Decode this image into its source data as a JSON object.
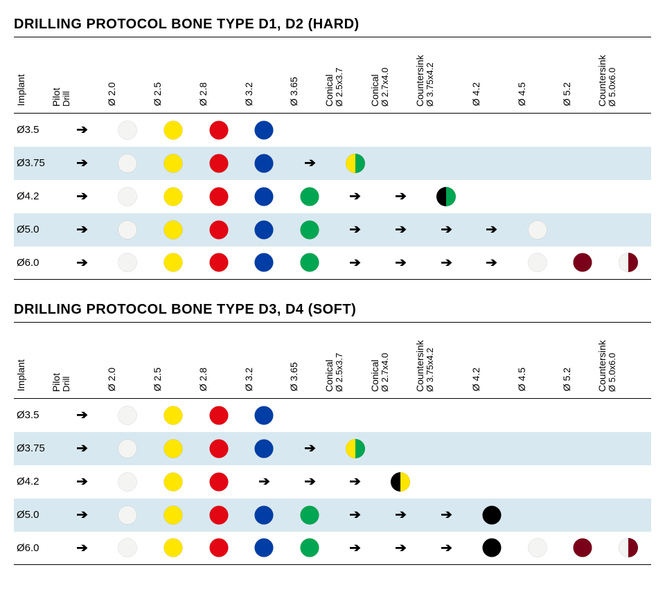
{
  "dot_radius": 14,
  "colors": {
    "white": "#f4f4f2",
    "yellow": "#ffe600",
    "red": "#e30613",
    "blue": "#003da5",
    "green": "#00a651",
    "black": "#000000",
    "darkred": "#7a0019"
  },
  "arrow_glyph": "➔",
  "columns": [
    {
      "key": "implant",
      "label": "Implant"
    },
    {
      "key": "pilot",
      "label": "Pilot",
      "sub": "Drill"
    },
    {
      "key": "d20",
      "label": "Ø 2.0"
    },
    {
      "key": "d25",
      "label": "Ø 2.5"
    },
    {
      "key": "d28",
      "label": "Ø 2.8"
    },
    {
      "key": "d32",
      "label": "Ø 3.2"
    },
    {
      "key": "d365",
      "label": "Ø 3.65"
    },
    {
      "key": "con25",
      "label": "Conical",
      "sub": "Ø 2.5x3.7"
    },
    {
      "key": "con27",
      "label": "Conical",
      "sub": "Ø 2.7x4.0"
    },
    {
      "key": "cs375",
      "label": "Countersink",
      "sub": "Ø 3.75x4.2"
    },
    {
      "key": "d42",
      "label": "Ø 4.2"
    },
    {
      "key": "d45",
      "label": "Ø 4.5"
    },
    {
      "key": "d52",
      "label": "Ø 5.2"
    },
    {
      "key": "cs50",
      "label": "Countersink",
      "sub": "Ø 5.0x6.0"
    }
  ],
  "tables": [
    {
      "title": "DRILLING PROTOCOL BONE TYPE D1, D2 (HARD)",
      "rows": [
        {
          "label": "Ø3.5",
          "alt": false,
          "cells": [
            "arrow",
            {
              "t": "dot",
              "c": "white"
            },
            {
              "t": "dot",
              "c": "yellow"
            },
            {
              "t": "dot",
              "c": "red"
            },
            {
              "t": "dot",
              "c": "blue"
            },
            "",
            "",
            "",
            "",
            "",
            "",
            "",
            ""
          ]
        },
        {
          "label": "Ø3.75",
          "alt": true,
          "cells": [
            "arrow",
            {
              "t": "dot",
              "c": "white"
            },
            {
              "t": "dot",
              "c": "yellow"
            },
            {
              "t": "dot",
              "c": "red"
            },
            {
              "t": "dot",
              "c": "blue"
            },
            "arrow",
            {
              "t": "split",
              "l": "yellow",
              "r": "green"
            },
            "",
            "",
            "",
            "",
            "",
            ""
          ]
        },
        {
          "label": "Ø4.2",
          "alt": false,
          "cells": [
            "arrow",
            {
              "t": "dot",
              "c": "white"
            },
            {
              "t": "dot",
              "c": "yellow"
            },
            {
              "t": "dot",
              "c": "red"
            },
            {
              "t": "dot",
              "c": "blue"
            },
            {
              "t": "dot",
              "c": "green"
            },
            "arrow",
            "arrow",
            {
              "t": "split",
              "l": "black",
              "r": "green"
            },
            "",
            "",
            "",
            ""
          ]
        },
        {
          "label": "Ø5.0",
          "alt": true,
          "cells": [
            "arrow",
            {
              "t": "dot",
              "c": "white"
            },
            {
              "t": "dot",
              "c": "yellow"
            },
            {
              "t": "dot",
              "c": "red"
            },
            {
              "t": "dot",
              "c": "blue"
            },
            {
              "t": "dot",
              "c": "green"
            },
            "arrow",
            "arrow",
            "arrow",
            "arrow",
            {
              "t": "dot",
              "c": "white"
            },
            "",
            ""
          ]
        },
        {
          "label": "Ø6.0",
          "alt": false,
          "cells": [
            "arrow",
            {
              "t": "dot",
              "c": "white"
            },
            {
              "t": "dot",
              "c": "yellow"
            },
            {
              "t": "dot",
              "c": "red"
            },
            {
              "t": "dot",
              "c": "blue"
            },
            {
              "t": "dot",
              "c": "green"
            },
            "arrow",
            "arrow",
            "arrow",
            "arrow",
            {
              "t": "dot",
              "c": "white"
            },
            {
              "t": "dot",
              "c": "darkred"
            },
            {
              "t": "split",
              "l": "white",
              "r": "darkred"
            }
          ]
        }
      ]
    },
    {
      "title": "DRILLING PROTOCOL BONE TYPE D3, D4 (SOFT)",
      "rows": [
        {
          "label": "Ø3.5",
          "alt": false,
          "cells": [
            "arrow",
            {
              "t": "dot",
              "c": "white"
            },
            {
              "t": "dot",
              "c": "yellow"
            },
            {
              "t": "dot",
              "c": "red"
            },
            {
              "t": "dot",
              "c": "blue"
            },
            "",
            "",
            "",
            "",
            "",
            "",
            "",
            ""
          ]
        },
        {
          "label": "Ø3.75",
          "alt": true,
          "cells": [
            "arrow",
            {
              "t": "dot",
              "c": "white"
            },
            {
              "t": "dot",
              "c": "yellow"
            },
            {
              "t": "dot",
              "c": "red"
            },
            {
              "t": "dot",
              "c": "blue"
            },
            "arrow",
            {
              "t": "split",
              "l": "yellow",
              "r": "green"
            },
            "",
            "",
            "",
            "",
            "",
            ""
          ]
        },
        {
          "label": "Ø4.2",
          "alt": false,
          "cells": [
            "arrow",
            {
              "t": "dot",
              "c": "white"
            },
            {
              "t": "dot",
              "c": "yellow"
            },
            {
              "t": "dot",
              "c": "red"
            },
            "arrow",
            "arrow",
            "arrow",
            {
              "t": "split",
              "l": "black",
              "r": "yellow"
            },
            "",
            "",
            "",
            "",
            ""
          ]
        },
        {
          "label": "Ø5.0",
          "alt": true,
          "cells": [
            "arrow",
            {
              "t": "dot",
              "c": "white"
            },
            {
              "t": "dot",
              "c": "yellow"
            },
            {
              "t": "dot",
              "c": "red"
            },
            {
              "t": "dot",
              "c": "blue"
            },
            {
              "t": "dot",
              "c": "green"
            },
            "arrow",
            "arrow",
            "arrow",
            {
              "t": "dot",
              "c": "black"
            },
            "",
            "",
            ""
          ]
        },
        {
          "label": "Ø6.0",
          "alt": false,
          "cells": [
            "arrow",
            {
              "t": "dot",
              "c": "white"
            },
            {
              "t": "dot",
              "c": "yellow"
            },
            {
              "t": "dot",
              "c": "red"
            },
            {
              "t": "dot",
              "c": "blue"
            },
            {
              "t": "dot",
              "c": "green"
            },
            "arrow",
            "arrow",
            "arrow",
            {
              "t": "dot",
              "c": "black"
            },
            {
              "t": "dot",
              "c": "white"
            },
            {
              "t": "dot",
              "c": "darkred"
            },
            {
              "t": "split",
              "l": "white",
              "r": "darkred"
            }
          ]
        }
      ]
    }
  ]
}
